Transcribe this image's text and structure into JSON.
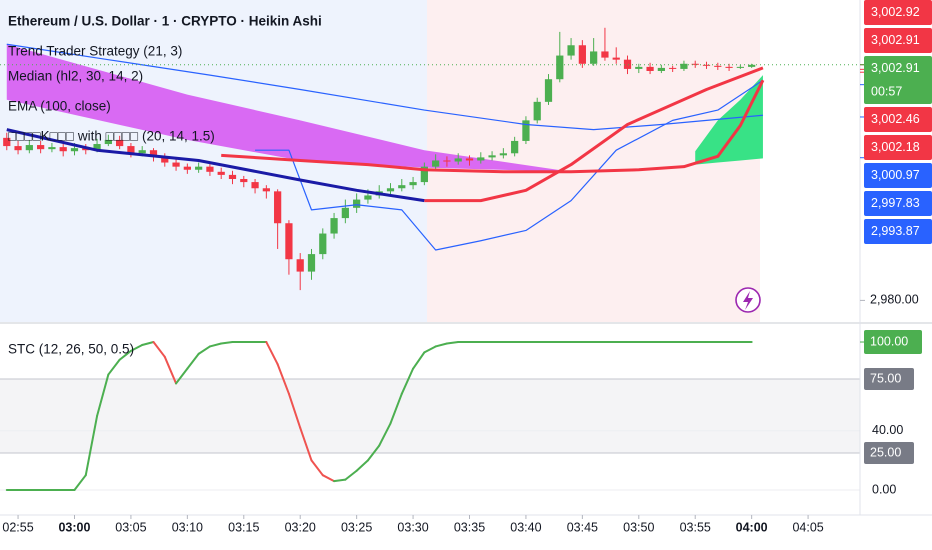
{
  "chart_data": [
    {
      "type": "candlestick",
      "title": "Ethereum / U.S. Dollar · 1 · CRYPTO · Heikin Ashi",
      "legend": [
        "Trend Trader Strategy (21, 3)",
        "Median (hl2, 30, 14, 2)",
        "EMA (100, close)",
        "□□□□K□□□ with □□□□ (20, 14, 1.5)"
      ],
      "x": [
        174,
        175,
        176,
        177,
        178,
        179,
        180,
        181,
        182,
        183,
        184,
        185,
        186,
        187,
        188,
        189,
        190,
        191,
        192,
        193,
        194,
        195,
        196,
        197,
        198,
        199,
        200,
        201,
        202,
        203,
        204,
        205,
        206,
        207,
        208,
        209,
        210,
        211,
        212,
        213,
        214,
        215,
        216,
        217,
        218,
        219,
        220,
        221,
        222,
        223,
        224,
        225,
        226,
        227,
        228,
        229,
        230,
        231,
        232,
        233,
        234,
        235,
        236,
        237,
        238,
        239,
        240
      ],
      "open": [
        2995.8,
        2995.0,
        2994.6,
        2995.1,
        2994.7,
        2994.9,
        2994.5,
        2994.8,
        2994.6,
        2995.2,
        2995.6,
        2995.0,
        2994.3,
        2994.6,
        2994.0,
        2993.4,
        2993.0,
        2992.7,
        2993.0,
        2992.5,
        2992.2,
        2991.8,
        2991.5,
        2990.9,
        2990.6,
        2987.5,
        2984.0,
        2982.8,
        2984.5,
        2986.5,
        2988.0,
        2989.0,
        2989.8,
        2990.2,
        2990.6,
        2990.9,
        2991.2,
        2991.5,
        2993.0,
        2993.6,
        2993.5,
        2993.8,
        2993.6,
        2993.9,
        2994.1,
        2994.3,
        2995.5,
        2997.5,
        2999.3,
        3001.5,
        3003.8,
        3004.8,
        3003.0,
        3004.2,
        3003.6,
        3003.4,
        3002.5,
        3002.7,
        3002.3,
        3002.6,
        3002.5,
        3003.0,
        3002.9,
        3002.8,
        3002.7,
        3002.6,
        3002.7
      ],
      "high": [
        2996.3,
        2995.5,
        2995.6,
        2995.5,
        2995.3,
        2995.2,
        2995.3,
        2995.2,
        2995.7,
        2996.1,
        2996.0,
        2995.3,
        2995.0,
        2994.8,
        2994.3,
        2993.8,
        2993.3,
        2993.4,
        2993.3,
        2992.9,
        2992.6,
        2992.1,
        2991.8,
        2991.2,
        2990.8,
        2987.8,
        2984.6,
        2985.0,
        2987.0,
        2988.5,
        2989.8,
        2990.4,
        2990.8,
        2991.2,
        2991.4,
        2991.8,
        2992.0,
        2993.4,
        2994.2,
        2994.0,
        2994.3,
        2994.1,
        2994.4,
        2994.5,
        2994.8,
        2995.9,
        2997.9,
        2999.7,
        3002.0,
        3006.1,
        3005.5,
        3005.3,
        3005.5,
        3006.5,
        3004.6,
        3003.8,
        3003.0,
        3003.1,
        3002.9,
        3002.8,
        3003.3,
        3003.3,
        3003.2,
        3003.1,
        3003.0,
        3002.9,
        3003.0
      ],
      "low": [
        2994.6,
        2994.2,
        2994.3,
        2994.3,
        2994.4,
        2994.0,
        2994.1,
        2994.2,
        2994.4,
        2995.0,
        2994.7,
        2993.9,
        2994.0,
        2993.5,
        2993.0,
        2992.6,
        2992.3,
        2992.4,
        2992.1,
        2991.8,
        2991.3,
        2991.0,
        2990.4,
        2989.9,
        2985.0,
        2982.5,
        2981.0,
        2982.0,
        2984.0,
        2986.0,
        2987.5,
        2988.5,
        2989.4,
        2989.9,
        2990.3,
        2990.6,
        2990.8,
        2991.2,
        2992.6,
        2993.0,
        2993.2,
        2993.1,
        2993.3,
        2993.6,
        2993.8,
        2994.0,
        2995.2,
        2997.2,
        2999.0,
        3001.2,
        3003.4,
        3002.6,
        3002.8,
        3003.3,
        3003.0,
        3002.0,
        3002.1,
        3002.0,
        3002.1,
        3002.2,
        3002.3,
        3002.6,
        3002.5,
        3002.4,
        3002.3,
        3002.5,
        3002.6
      ],
      "close": [
        2995.0,
        2994.6,
        2995.1,
        2994.7,
        2994.9,
        2994.5,
        2994.8,
        2994.6,
        2995.2,
        2995.6,
        2995.0,
        2994.3,
        2994.6,
        2994.0,
        2993.4,
        2993.0,
        2992.7,
        2993.0,
        2992.5,
        2992.2,
        2991.8,
        2991.5,
        2990.9,
        2990.6,
        2987.5,
        2984.0,
        2982.8,
        2984.5,
        2986.5,
        2988.0,
        2989.0,
        2989.8,
        2990.2,
        2990.6,
        2990.9,
        2991.2,
        2991.5,
        2993.0,
        2993.6,
        2993.5,
        2993.8,
        2993.6,
        2993.9,
        2994.1,
        2994.3,
        2995.5,
        2997.5,
        2999.3,
        3001.5,
        3003.8,
        3004.8,
        3003.0,
        3004.2,
        3003.6,
        3003.4,
        3002.5,
        3002.7,
        3002.3,
        3002.6,
        3002.5,
        3003.0,
        3002.9,
        3002.8,
        3002.7,
        3002.6,
        3002.7,
        3002.9
      ],
      "up_color": "#4caf50",
      "down_color": "#f23645",
      "xlim": [
        173.4,
        249.6
      ],
      "ylim": [
        2977.9,
        3009.2
      ],
      "yticks": [
        {
          "value": 2980,
          "label": "2,980.00"
        }
      ],
      "overlays": [
        {
          "type": "area",
          "color": "#d65bf2",
          "x": [
            174,
            190,
            200,
            211,
            224
          ],
          "values": [
            3004.9,
            3000.0,
            2997.5,
            2994.6,
            2992.5
          ],
          "lower": [
            2999.5,
            2995.6,
            2993.6,
            2992.9,
            2992.5
          ]
        },
        {
          "type": "area",
          "color": "#22e07a",
          "x": [
            235,
            237,
            239,
            241
          ],
          "values": [
            2994.5,
            2997.5,
            2999.5,
            3001.9
          ],
          "lower": [
            2993.2,
            2993.4,
            2993.6,
            2993.8
          ]
        },
        {
          "type": "line",
          "color": "#2962ff",
          "width": 1.2,
          "x": [
            174,
            183,
            192,
            200,
            211,
            220,
            226,
            232,
            241
          ],
          "values": [
            3004.9,
            3003.4,
            3001.9,
            3000.5,
            2998.5,
            2997.1,
            2996.6,
            2997.1,
            2998.0
          ]
        },
        {
          "type": "line",
          "color": "#2962ff",
          "width": 1.2,
          "x": [
            196,
            199,
            201,
            205,
            209,
            212,
            216,
            220,
            224,
            228,
            233,
            237,
            241
          ],
          "values": [
            2994.6,
            2994.6,
            2988.8,
            2989.3,
            2988.8,
            2984.9,
            2985.8,
            2986.8,
            2989.7,
            2994.6,
            2997.5,
            2998.5,
            3001.4
          ]
        },
        {
          "type": "line",
          "color": "#f23645",
          "width": 3,
          "x": [
            193,
            200,
            206,
            211,
            218,
            224,
            230,
            234,
            237,
            239,
            241
          ],
          "values": [
            2994.1,
            2993.6,
            2993.2,
            2992.7,
            2992.5,
            2992.5,
            2992.7,
            2993.0,
            2994.0,
            2997.0,
            3001.4
          ]
        },
        {
          "type": "line",
          "color": "#1a1aa6",
          "width": 3,
          "x": [
            174,
            182,
            191,
            200,
            205,
            211
          ],
          "values": [
            2996.6,
            2994.6,
            2993.6,
            2991.7,
            2990.7,
            2989.7
          ]
        },
        {
          "type": "line",
          "color": "#f23645",
          "width": 3,
          "x": [
            211,
            216,
            220,
            224,
            229,
            236,
            241
          ],
          "values": [
            2989.7,
            2989.7,
            2990.7,
            2993.2,
            2997.1,
            3000.5,
            3002.6
          ]
        }
      ],
      "price_labels": [
        {
          "value": 3002.92,
          "label": "3,002.92",
          "color": "#f23645"
        },
        {
          "value": 3002.91,
          "label": "3,002.91",
          "color": "#f23645"
        },
        {
          "value": 3002.91,
          "label": "3,002.91",
          "color": "#4caf50",
          "countdown": "00:57"
        },
        {
          "value": 3002.46,
          "label": "3,002.46",
          "color": "#f23645"
        },
        {
          "value": 3002.18,
          "label": "3,002.18",
          "color": "#f23645"
        },
        {
          "value": 3000.97,
          "label": "3,000.97",
          "color": "#2962ff"
        },
        {
          "value": 2997.83,
          "label": "2,997.83",
          "color": "#2962ff"
        },
        {
          "value": 2993.87,
          "label": "2,993.87",
          "color": "#2962ff"
        }
      ]
    },
    {
      "type": "line",
      "title": "STC (12, 26, 50, 0.5)",
      "x": [
        174,
        175,
        176,
        177,
        178,
        179,
        180,
        181,
        182,
        183,
        184,
        185,
        186,
        187,
        188,
        189,
        190,
        191,
        192,
        193,
        194,
        195,
        196,
        197,
        198,
        199,
        200,
        201,
        202,
        203,
        204,
        205,
        206,
        207,
        208,
        209,
        210,
        211,
        212,
        213,
        214,
        215,
        216,
        217,
        218,
        219,
        220,
        221,
        222,
        223,
        224,
        225,
        226,
        227,
        228,
        229,
        230,
        231,
        232,
        233,
        234,
        235,
        236,
        237,
        238,
        239,
        240
      ],
      "values": [
        0,
        0,
        0,
        0,
        0,
        0,
        0,
        10,
        50,
        78,
        88,
        94,
        98,
        100,
        90,
        72,
        82,
        92,
        97,
        99,
        100,
        100,
        100,
        100,
        85,
        65,
        42,
        20,
        10,
        6,
        7,
        13,
        20,
        30,
        45,
        65,
        82,
        93,
        97,
        99,
        100,
        100,
        100,
        100,
        100,
        100,
        100,
        100,
        100,
        100,
        100,
        100,
        100,
        100,
        100,
        100,
        100,
        100,
        100,
        100,
        100,
        100,
        100,
        100,
        100,
        100,
        100
      ],
      "up_color": "#4caf50",
      "down_color": "#ef5350",
      "xlim": [
        173.4,
        249.6
      ],
      "ylim": [
        -16.9,
        111.5
      ],
      "yticks": [
        {
          "value": 0,
          "label": "0.00"
        },
        {
          "value": 40,
          "label": "40.00"
        }
      ],
      "levels": [
        {
          "value": 75,
          "label": "75.00"
        },
        {
          "value": 25,
          "label": "25.00"
        }
      ],
      "last_label": {
        "value": 100,
        "label": "100.00",
        "color": "#4caf50"
      },
      "xticks": [
        {
          "value": 175,
          "label": "02:55"
        },
        {
          "value": 180,
          "label": "03:00"
        },
        {
          "value": 185,
          "label": "03:05"
        },
        {
          "value": 190,
          "label": "03:10"
        },
        {
          "value": 195,
          "label": "03:15"
        },
        {
          "value": 200,
          "label": "03:20"
        },
        {
          "value": 205,
          "label": "03:25"
        },
        {
          "value": 210,
          "label": "03:30"
        },
        {
          "value": 215,
          "label": "03:35"
        },
        {
          "value": 220,
          "label": "03:40"
        },
        {
          "value": 225,
          "label": "03:45"
        },
        {
          "value": 230,
          "label": "03:50"
        },
        {
          "value": 235,
          "label": "03:55"
        },
        {
          "value": 240,
          "label": "04:00"
        },
        {
          "value": 245,
          "label": "04:05"
        }
      ]
    }
  ]
}
